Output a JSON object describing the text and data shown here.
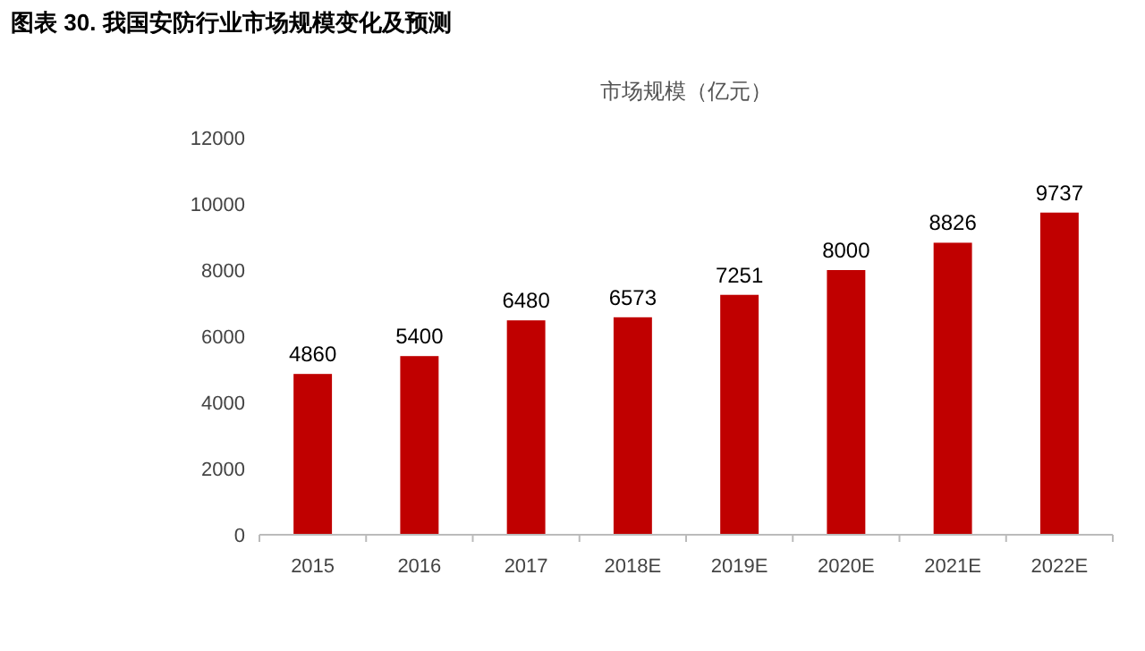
{
  "chart_data": {
    "type": "bar",
    "title": "图表 30. 我国安防行业市场规模变化及预测",
    "subtitle": "市场规模（亿元）",
    "categories": [
      "2015",
      "2016",
      "2017",
      "2018E",
      "2019E",
      "2020E",
      "2021E",
      "2022E"
    ],
    "values": [
      4860,
      5400,
      6480,
      6573,
      7251,
      8000,
      8826,
      9737
    ],
    "color": "#c00000",
    "data_labels": true,
    "ylim": [
      0,
      12000
    ],
    "yticks": [
      0,
      2000,
      4000,
      6000,
      8000,
      10000,
      12000
    ],
    "grid": false
  }
}
